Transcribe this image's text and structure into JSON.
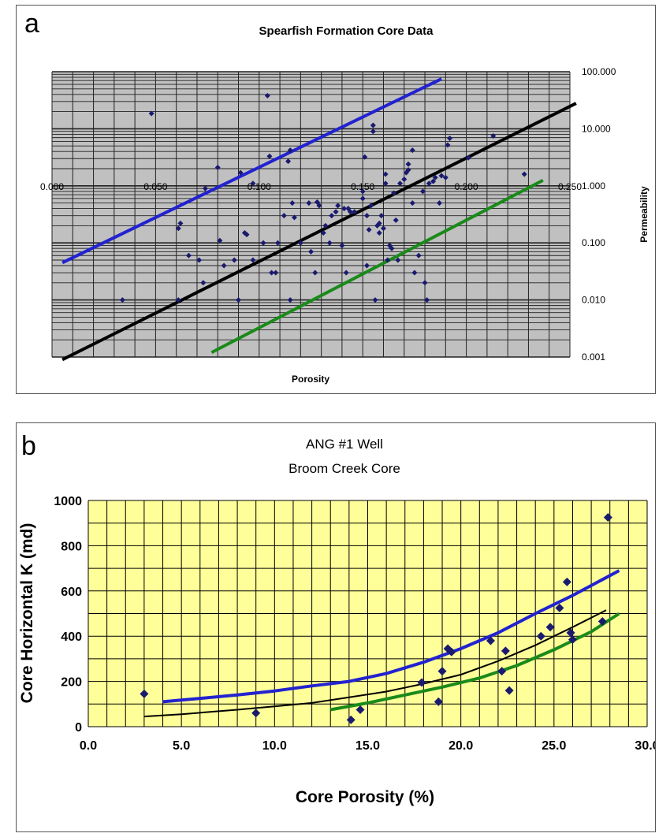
{
  "chart_data": [
    {
      "panel_label": "a",
      "type": "scatter",
      "title": "Spearfish Formation Core Data",
      "xlabel": "Porosity",
      "ylabel": "Permeability",
      "xlim": [
        0.0,
        0.25
      ],
      "ylim": [
        0.001,
        100.0
      ],
      "y_scale": "log",
      "grid": true,
      "plot_background": "#c0c0c0",
      "x_ticks": [
        "0.000",
        "0.050",
        "0.100",
        "0.150",
        "0.200",
        "0.250"
      ],
      "y_ticks": [
        "0.001",
        "0.010",
        "0.100",
        "1.000",
        "10.000",
        "100.000"
      ],
      "x_tick_values": [
        0.0,
        0.05,
        0.1,
        0.15,
        0.2,
        0.25
      ],
      "y_tick_values": [
        0.001,
        0.01,
        0.1,
        1.0,
        10.0,
        100.0
      ],
      "points": [
        [
          0.034,
          0.01
        ],
        [
          0.048,
          18.5
        ],
        [
          0.061,
          0.18
        ],
        [
          0.061,
          0.01
        ],
        [
          0.062,
          0.22
        ],
        [
          0.066,
          0.06
        ],
        [
          0.071,
          0.05
        ],
        [
          0.073,
          0.02
        ],
        [
          0.074,
          0.9
        ],
        [
          0.08,
          2.1
        ],
        [
          0.081,
          0.11
        ],
        [
          0.083,
          0.04
        ],
        [
          0.088,
          0.05
        ],
        [
          0.09,
          0.01
        ],
        [
          0.091,
          1.7
        ],
        [
          0.093,
          0.15
        ],
        [
          0.094,
          0.14
        ],
        [
          0.097,
          1.1
        ],
        [
          0.097,
          0.05
        ],
        [
          0.102,
          0.1
        ],
        [
          0.104,
          38.0
        ],
        [
          0.105,
          3.3
        ],
        [
          0.106,
          0.03
        ],
        [
          0.108,
          0.03
        ],
        [
          0.109,
          0.1
        ],
        [
          0.112,
          0.3
        ],
        [
          0.114,
          2.7
        ],
        [
          0.115,
          4.2
        ],
        [
          0.115,
          0.01
        ],
        [
          0.116,
          0.5
        ],
        [
          0.117,
          0.28
        ],
        [
          0.12,
          0.1
        ],
        [
          0.124,
          0.5
        ],
        [
          0.125,
          0.07
        ],
        [
          0.127,
          0.03
        ],
        [
          0.128,
          0.52
        ],
        [
          0.129,
          0.45
        ],
        [
          0.131,
          0.15
        ],
        [
          0.132,
          0.2
        ],
        [
          0.134,
          0.1
        ],
        [
          0.135,
          0.3
        ],
        [
          0.137,
          0.35
        ],
        [
          0.138,
          0.45
        ],
        [
          0.14,
          0.09
        ],
        [
          0.141,
          0.4
        ],
        [
          0.142,
          0.03
        ],
        [
          0.143,
          0.4
        ],
        [
          0.144,
          0.35
        ],
        [
          0.146,
          0.35
        ],
        [
          0.15,
          0.6
        ],
        [
          0.15,
          0.8
        ],
        [
          0.151,
          3.2
        ],
        [
          0.152,
          0.04
        ],
        [
          0.152,
          0.3
        ],
        [
          0.153,
          0.17
        ],
        [
          0.154,
          0.45
        ],
        [
          0.155,
          9.0
        ],
        [
          0.155,
          11.5
        ],
        [
          0.156,
          0.01
        ],
        [
          0.157,
          0.2
        ],
        [
          0.158,
          0.22
        ],
        [
          0.158,
          0.15
        ],
        [
          0.159,
          0.3
        ],
        [
          0.16,
          0.18
        ],
        [
          0.161,
          1.1
        ],
        [
          0.161,
          1.6
        ],
        [
          0.162,
          0.05
        ],
        [
          0.163,
          0.09
        ],
        [
          0.164,
          0.08
        ],
        [
          0.165,
          0.75
        ],
        [
          0.166,
          0.25
        ],
        [
          0.167,
          0.05
        ],
        [
          0.168,
          1.1
        ],
        [
          0.17,
          1.3
        ],
        [
          0.171,
          1.7
        ],
        [
          0.172,
          2.4
        ],
        [
          0.172,
          1.9
        ],
        [
          0.174,
          4.2
        ],
        [
          0.174,
          0.5
        ],
        [
          0.175,
          0.03
        ],
        [
          0.177,
          0.06
        ],
        [
          0.179,
          0.8
        ],
        [
          0.18,
          0.02
        ],
        [
          0.181,
          0.01
        ],
        [
          0.182,
          1.1
        ],
        [
          0.184,
          1.2
        ],
        [
          0.185,
          1.4
        ],
        [
          0.187,
          0.5
        ],
        [
          0.188,
          1.5
        ],
        [
          0.19,
          1.4
        ],
        [
          0.191,
          5.2
        ],
        [
          0.192,
          6.8
        ],
        [
          0.201,
          3.1
        ],
        [
          0.213,
          7.5
        ],
        [
          0.228,
          1.6
        ]
      ],
      "trend_lines": [
        {
          "color": "#2222d0",
          "x": [
            0.005,
            0.188
          ],
          "y": [
            0.045,
            75.0
          ]
        },
        {
          "color": "#000000",
          "x": [
            0.005,
            0.253
          ],
          "y": [
            0.0009,
            28.0
          ]
        },
        {
          "color": "#1a8a1a",
          "x": [
            0.077,
            0.237
          ],
          "y": [
            0.0012,
            1.25
          ]
        }
      ]
    },
    {
      "panel_label": "b",
      "type": "scatter",
      "title": "ANG #1 Well",
      "subtitle": "Broom Creek Core",
      "xlabel": "Core Porosity (%)",
      "ylabel": "Core Horizontal K (md)",
      "xlim": [
        0.0,
        30.0
      ],
      "ylim": [
        0,
        1000
      ],
      "grid": true,
      "plot_background": "#ffff99",
      "x_ticks": [
        "0.0",
        "5.0",
        "10.0",
        "15.0",
        "20.0",
        "25.0",
        "30.0"
      ],
      "y_ticks": [
        "0",
        "200",
        "400",
        "600",
        "800",
        "1000"
      ],
      "x_tick_values": [
        0,
        5,
        10,
        15,
        20,
        25,
        30
      ],
      "y_tick_values": [
        0,
        200,
        400,
        600,
        800,
        1000
      ],
      "points": [
        [
          3.0,
          145
        ],
        [
          9.0,
          60
        ],
        [
          14.1,
          30
        ],
        [
          14.6,
          75
        ],
        [
          17.9,
          195
        ],
        [
          18.8,
          110
        ],
        [
          19.0,
          245
        ],
        [
          19.3,
          345
        ],
        [
          19.5,
          330
        ],
        [
          21.6,
          380
        ],
        [
          22.2,
          245
        ],
        [
          22.4,
          335
        ],
        [
          22.6,
          160
        ],
        [
          24.3,
          400
        ],
        [
          24.8,
          440
        ],
        [
          25.3,
          525
        ],
        [
          25.7,
          640
        ],
        [
          25.9,
          415
        ],
        [
          26.0,
          385
        ],
        [
          27.6,
          465
        ],
        [
          27.9,
          925
        ]
      ],
      "trend_lines": [
        {
          "color": "#2222d0",
          "x": [
            4.0,
            6.0,
            8.0,
            10.0,
            12.0,
            14.0,
            16.0,
            18.0,
            20.0,
            22.0,
            24.0,
            26.0,
            28.5
          ],
          "y": [
            110,
            125,
            140,
            158,
            180,
            200,
            235,
            285,
            345,
            415,
            500,
            580,
            690
          ]
        },
        {
          "color": "#000000",
          "x": [
            3.0,
            5.0,
            8.0,
            10.0,
            12.0,
            14.0,
            16.0,
            18.0,
            20.0,
            22.0,
            24.0,
            26.0,
            27.8
          ],
          "y": [
            45,
            55,
            75,
            90,
            105,
            130,
            155,
            190,
            230,
            290,
            360,
            440,
            515
          ]
        },
        {
          "color": "#1a8a1a",
          "x": [
            13.0,
            15.0,
            17.0,
            19.0,
            21.0,
            23.0,
            25.0,
            27.0,
            28.5
          ],
          "y": [
            75,
            105,
            140,
            175,
            215,
            270,
            340,
            420,
            500
          ]
        }
      ]
    }
  ]
}
